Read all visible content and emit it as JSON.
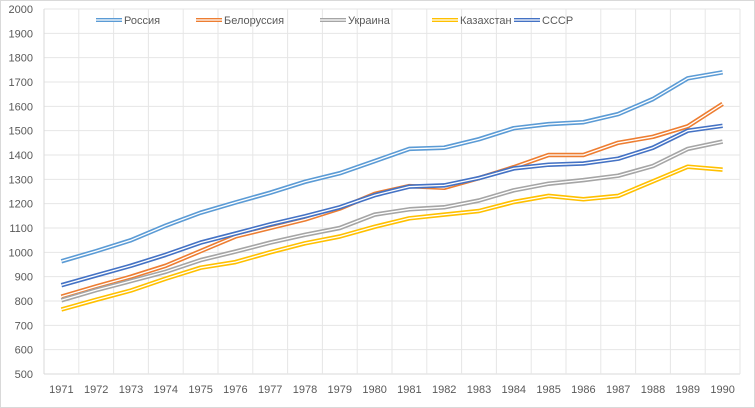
{
  "chart_data": {
    "type": "line",
    "title": "",
    "xlabel": "",
    "ylabel": "",
    "ylim": [
      500,
      2000
    ],
    "yticks": [
      500,
      600,
      700,
      800,
      900,
      1000,
      1100,
      1200,
      1300,
      1400,
      1500,
      1600,
      1700,
      1800,
      1900,
      2000
    ],
    "grid": true,
    "legend_position": "top",
    "categories": [
      "1971",
      "1972",
      "1973",
      "1974",
      "1975",
      "1976",
      "1977",
      "1978",
      "1979",
      "1980",
      "1981",
      "1982",
      "1983",
      "1984",
      "1985",
      "1986",
      "1987",
      "1988",
      "1989",
      "1990"
    ],
    "series": [
      {
        "name": "Россия",
        "color": "#5b9bd5",
        "values": [
          963,
          1005,
          1050,
          1110,
          1163,
          1205,
          1245,
          1290,
          1325,
          1375,
          1425,
          1430,
          1465,
          1510,
          1527,
          1535,
          1568,
          1630,
          1715,
          1740
        ]
      },
      {
        "name": "Белоруссия",
        "color": "#ed7d31",
        "values": [
          818,
          860,
          900,
          945,
          1005,
          1065,
          1100,
          1135,
          1180,
          1240,
          1272,
          1265,
          1305,
          1350,
          1400,
          1400,
          1450,
          1475,
          1518,
          1610
        ]
      },
      {
        "name": "Украина",
        "color": "#a5a5a5",
        "values": [
          803,
          845,
          882,
          920,
          968,
          1003,
          1040,
          1072,
          1100,
          1155,
          1177,
          1185,
          1213,
          1255,
          1282,
          1297,
          1315,
          1355,
          1425,
          1455
        ]
      },
      {
        "name": "Казахстан",
        "color": "#ffc000",
        "values": [
          765,
          805,
          843,
          892,
          937,
          960,
          1000,
          1037,
          1065,
          1105,
          1140,
          1155,
          1170,
          1207,
          1232,
          1218,
          1232,
          1292,
          1352,
          1340
        ]
      },
      {
        "name": "СССР",
        "color": "#4472c4",
        "values": [
          865,
          905,
          945,
          990,
          1040,
          1077,
          1115,
          1148,
          1185,
          1235,
          1270,
          1275,
          1305,
          1345,
          1360,
          1365,
          1385,
          1430,
          1500,
          1520
        ]
      }
    ]
  }
}
